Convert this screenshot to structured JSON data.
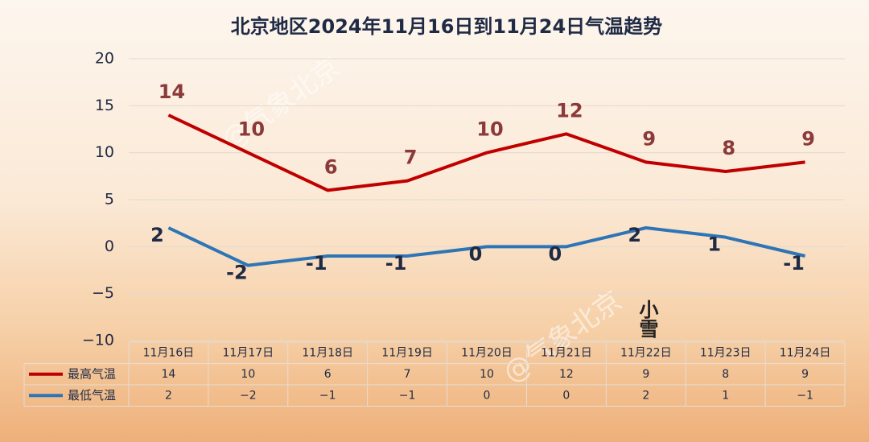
{
  "chart_data": {
    "type": "line",
    "title": "北京地区2024年11月16日到11月24日气温趋势",
    "watermark": "@气象北京",
    "annotation": "小雪",
    "categories": [
      "11月16日",
      "11月17日",
      "11月18日",
      "11月19日",
      "11月20日",
      "11月21日",
      "11月22日",
      "11月23日",
      "11月24日"
    ],
    "series": [
      {
        "name": "最高气温",
        "color": "#c00000",
        "label_color": "#8b3a3a",
        "values": [
          14,
          10,
          6,
          7,
          10,
          12,
          9,
          8,
          9
        ],
        "value_labels": [
          "14",
          "10",
          "6",
          "7",
          "10",
          "12",
          "9",
          "8",
          "9"
        ]
      },
      {
        "name": "最低气温",
        "color": "#2e75b6",
        "label_color": "#1f2a44",
        "values": [
          2,
          -2,
          -1,
          -1,
          0,
          0,
          2,
          1,
          -1
        ],
        "value_labels": [
          "2",
          "−2",
          "−1",
          "−1",
          "0",
          "0",
          "2",
          "1",
          "−1"
        ]
      }
    ],
    "ylim": [
      -10,
      20
    ],
    "yticks": [
      {
        "value": -10,
        "label": "−10"
      },
      {
        "value": -5,
        "label": "−5"
      },
      0,
      5,
      10,
      15,
      20
    ],
    "grid": true
  }
}
